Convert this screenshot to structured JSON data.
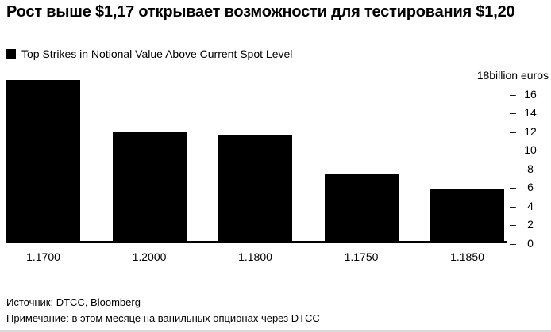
{
  "page": {
    "title": "Рост выше $1,17 открывает возможности для тестирования $1,20",
    "legend": {
      "label": "Top Strikes in Notional Value Above Current Spot Level",
      "marker_color": "#000000"
    },
    "footer": {
      "source": "Источник: DTCC, Bloomberg",
      "note": "Примечание: в этом месяце на ванильных опционах через DTCC"
    }
  },
  "chart_data": {
    "type": "bar",
    "categories": [
      "1.1700",
      "1.2000",
      "1.1800",
      "1.1750",
      "1.1850"
    ],
    "values": [
      17.2,
      11.7,
      11.3,
      7.2,
      5.5
    ],
    "title": "Рост выше $1,17 открывает возможности для тестирования $1,20",
    "legend": [
      "Top Strikes in Notional Value Above Current Spot Level"
    ],
    "legend_position": "top-left",
    "xlabel": "",
    "ylabel": "billion euros",
    "y_axis_top_label": "18billion euros",
    "yaxis_side": "right",
    "ylim": [
      0,
      18
    ],
    "yticks": [
      0,
      2,
      4,
      6,
      8,
      10,
      12,
      14,
      16
    ],
    "bar_color": "#000000",
    "background_color": "#ffffff",
    "grid": false
  }
}
